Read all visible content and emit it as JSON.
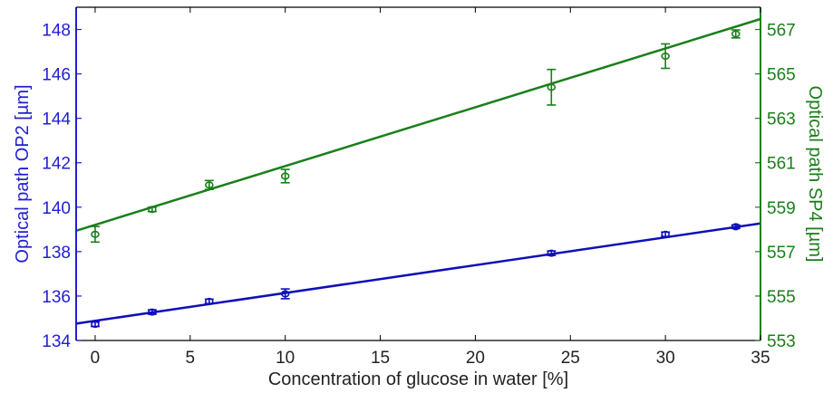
{
  "chart_data": {
    "type": "scatter",
    "xlabel": "Concentration of glucose in water [%]",
    "ylabel_left": "Optical path OP2 [µm]",
    "ylabel_right": "Optical path SP4 [µm]",
    "xlim": [
      -1,
      35
    ],
    "ylim_left": [
      134,
      149
    ],
    "ylim_right": [
      553,
      568
    ],
    "x_ticks": [
      "0",
      "5",
      "10",
      "15",
      "20",
      "25",
      "30",
      "35"
    ],
    "y_ticks_left": [
      "134",
      "136",
      "138",
      "140",
      "142",
      "144",
      "146",
      "148"
    ],
    "y_ticks_right": [
      "553",
      "555",
      "557",
      "559",
      "561",
      "563",
      "565",
      "567"
    ],
    "legend": "none",
    "grid": false,
    "colors": {
      "left_axis": "#1f1fd1",
      "right_axis": "#1a7f1a",
      "op2_series": "#0f0fb8",
      "sp4_series": "#1a7f1a"
    },
    "series": [
      {
        "axis": "left",
        "color": "#0f0fb8",
        "x": [
          0,
          3,
          6,
          10,
          24,
          30,
          33.7
        ],
        "y": [
          134.73,
          135.28,
          135.76,
          136.1,
          137.93,
          138.78,
          139.12
        ],
        "err": [
          0.1,
          0.1,
          0.1,
          0.22,
          0.1,
          0.1,
          0.08
        ],
        "fit": [
          134.76,
          139.27
        ]
      },
      {
        "axis": "right",
        "color": "#1a7f1a",
        "x": [
          0,
          3,
          6,
          10,
          24,
          30,
          33.7
        ],
        "y": [
          557.78,
          558.9,
          560.0,
          560.4,
          564.4,
          565.8,
          566.8
        ],
        "err": [
          0.35,
          0.1,
          0.2,
          0.3,
          0.8,
          0.55,
          0.18
        ],
        "fit": [
          557.94,
          567.47
        ]
      }
    ]
  }
}
